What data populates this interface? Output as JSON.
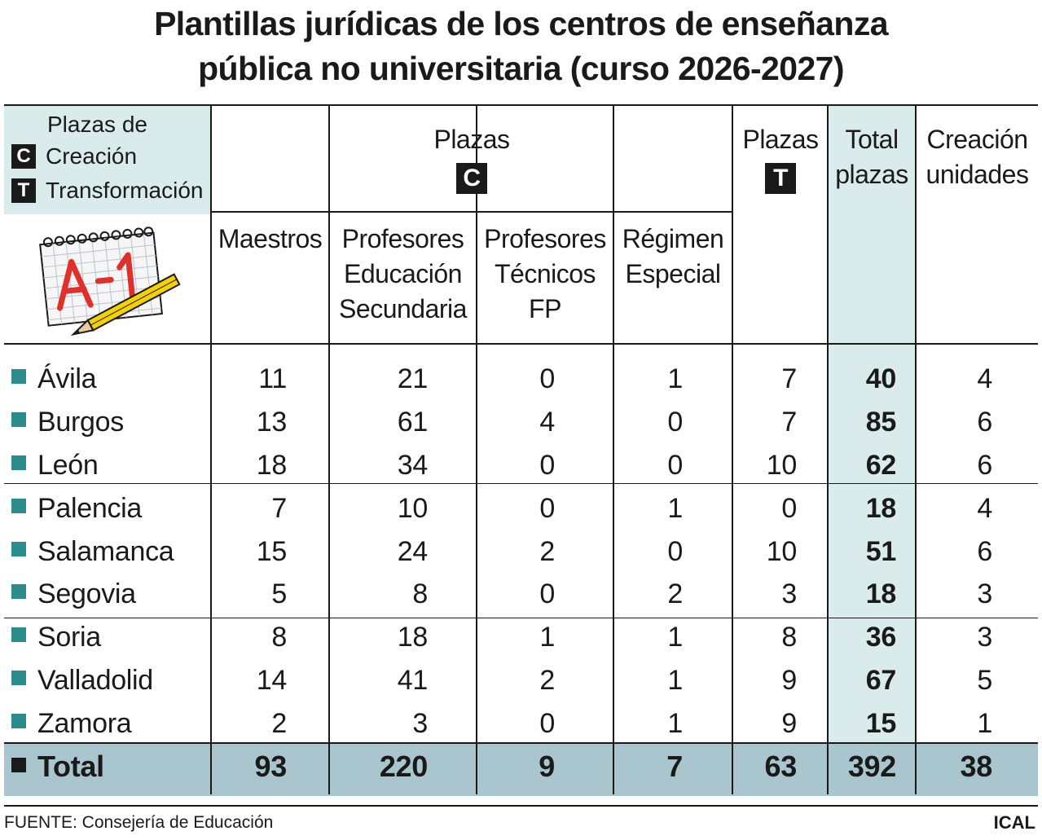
{
  "title": {
    "line1": "Plantillas jurídicas de los centros de enseñanza",
    "line2": "pública no universitaria (curso 2026-2027)"
  },
  "legend": {
    "heading": "Plazas de",
    "items": [
      {
        "badge": "C",
        "label": "Creación"
      },
      {
        "badge": "T",
        "label": "Transformación"
      }
    ]
  },
  "logo_icon": "notepad-a1-pencil-icon",
  "headers": {
    "plazas_c": {
      "label": "Plazas",
      "badge": "C"
    },
    "plazas_t": {
      "label": "Plazas",
      "badge": "T"
    },
    "total": {
      "line1": "Total",
      "line2": "plazas"
    },
    "creacion": {
      "line1": "Creación",
      "line2": "unidades"
    },
    "sub": [
      {
        "lines": [
          "Maestros"
        ]
      },
      {
        "lines": [
          "Profesores",
          "Educación",
          "Secundaria"
        ]
      },
      {
        "lines": [
          "Profesores",
          "Técnicos",
          "FP"
        ]
      },
      {
        "lines": [
          "Régimen",
          "Especial"
        ]
      }
    ]
  },
  "chart_data": {
    "type": "table",
    "title": "Plantillas jurídicas de los centros de enseñanza pública no universitaria (curso 2026-2027)",
    "columns": [
      "Maestros",
      "Profesores Educación Secundaria",
      "Profesores Técnicos FP",
      "Régimen Especial",
      "Plazas T",
      "Total plazas",
      "Creación unidades"
    ],
    "rows": [
      {
        "name": "Ávila",
        "values": [
          11,
          21,
          0,
          1,
          7,
          40,
          4
        ]
      },
      {
        "name": "Burgos",
        "values": [
          13,
          61,
          4,
          0,
          7,
          85,
          6
        ]
      },
      {
        "name": "León",
        "values": [
          18,
          34,
          0,
          0,
          10,
          62,
          6
        ]
      },
      {
        "name": "Palencia",
        "values": [
          7,
          10,
          0,
          1,
          0,
          18,
          4
        ]
      },
      {
        "name": "Salamanca",
        "values": [
          15,
          24,
          2,
          0,
          10,
          51,
          6
        ]
      },
      {
        "name": "Segovia",
        "values": [
          5,
          8,
          0,
          2,
          3,
          18,
          3
        ]
      },
      {
        "name": "Soria",
        "values": [
          8,
          18,
          1,
          1,
          8,
          36,
          3
        ]
      },
      {
        "name": "Valladolid",
        "values": [
          14,
          41,
          2,
          1,
          9,
          67,
          5
        ]
      },
      {
        "name": "Zamora",
        "values": [
          2,
          3,
          0,
          1,
          9,
          15,
          1
        ]
      }
    ],
    "total": {
      "name": "Total",
      "values": [
        93,
        220,
        9,
        7,
        63,
        392,
        38
      ]
    }
  },
  "colors": {
    "ink": "#1a1a1a",
    "shade": "#d9ebea",
    "total_bar": "#a9c6cf",
    "bullet": "#2a8c8c"
  },
  "footer": {
    "source": "FUENTE: Consejería de Educación",
    "brand": "ICAL"
  }
}
